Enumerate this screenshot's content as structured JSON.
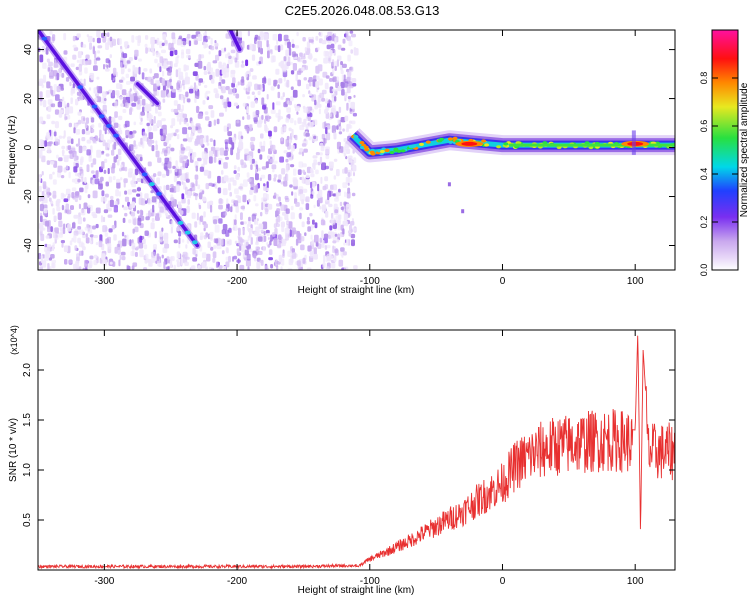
{
  "title": "C2E5.2026.048.08.53.G13",
  "chart_data": [
    {
      "type": "heatmap",
      "xlabel": "Height of straight line (km)",
      "ylabel": "Frequency (Hz)",
      "xlim": [
        -350,
        130
      ],
      "ylim": [
        -50,
        48
      ],
      "xticks": [
        -300,
        -200,
        -100,
        0,
        100
      ],
      "yticks": [
        -40,
        -20,
        0,
        20,
        40
      ],
      "colorbar": {
        "label": "Normalized spectral amplitude",
        "range": [
          0,
          1
        ],
        "ticks": [
          "0.0",
          "0.2",
          "0.4",
          "0.6",
          "0.8"
        ],
        "tick_values": [
          0,
          0.2,
          0.4,
          0.6,
          0.8
        ],
        "colormap": "rainbow (white-lavender-purple-blue-cyan-green-yellow-orange-red-magenta)",
        "colors": [
          "#ffffff",
          "#c9a8ee",
          "#7a2ff0",
          "#2040ff",
          "#00d8e8",
          "#28e040",
          "#e8e820",
          "#ff8800",
          "#ff1010",
          "#ff10a0"
        ]
      },
      "features": {
        "broadband_noise_region_km": [
          -350,
          -112
        ],
        "chirp_lines": [
          {
            "x": [
              -350,
              -230
            ],
            "y": [
              48,
              -40
            ]
          },
          {
            "x": [
              -275,
              -260
            ],
            "y": [
              26,
              18
            ]
          },
          {
            "x": [
              -205,
              -198
            ],
            "y": [
              48,
              40
            ]
          }
        ],
        "tone_band": {
          "x": [
            -113,
            -100,
            -80,
            -60,
            -40,
            -20,
            0,
            20,
            40,
            60,
            80,
            100,
            130
          ],
          "y": [
            5,
            -2,
            -1,
            1,
            3,
            2,
            1,
            1,
            1,
            1,
            1,
            1,
            1
          ],
          "peak_amplitude_x": [
            -25,
            100
          ]
        },
        "stray_points": [
          {
            "x": -30,
            "y": -26
          },
          {
            "x": -40,
            "y": -15
          }
        ]
      }
    },
    {
      "type": "line",
      "xlabel": "Height of straight line (km)",
      "ylabel": "SNR (10 * v/v)",
      "y_multiplier": "(x10^4)",
      "xlim": [
        -350,
        130
      ],
      "ylim": [
        0,
        2.4
      ],
      "xticks": [
        -300,
        -200,
        -100,
        0,
        100
      ],
      "yticks": [
        0.5,
        1.0,
        1.5,
        2.0
      ],
      "ytick_labels": [
        "0.5",
        "1.0",
        "1.5",
        "2.0"
      ],
      "color": "#e83030",
      "series": [
        {
          "x": [
            -350,
            -300,
            -250,
            -200,
            -150,
            -110,
            -100,
            -90,
            -80,
            -70,
            -60,
            -50,
            -40,
            -30,
            -20,
            -10,
            0,
            5,
            10,
            20,
            30,
            40,
            50,
            60,
            70,
            80,
            90,
            100,
            102,
            104,
            106,
            110,
            120,
            130
          ],
          "values": [
            0.02,
            0.02,
            0.02,
            0.02,
            0.02,
            0.03,
            0.12,
            0.18,
            0.25,
            0.32,
            0.4,
            0.48,
            0.56,
            0.64,
            0.75,
            0.85,
            0.95,
            1.05,
            1.15,
            1.25,
            1.32,
            1.36,
            1.38,
            1.4,
            1.42,
            1.43,
            1.42,
            1.4,
            2.4,
            0.35,
            2.2,
            1.3,
            1.3,
            1.3
          ]
        }
      ]
    }
  ]
}
